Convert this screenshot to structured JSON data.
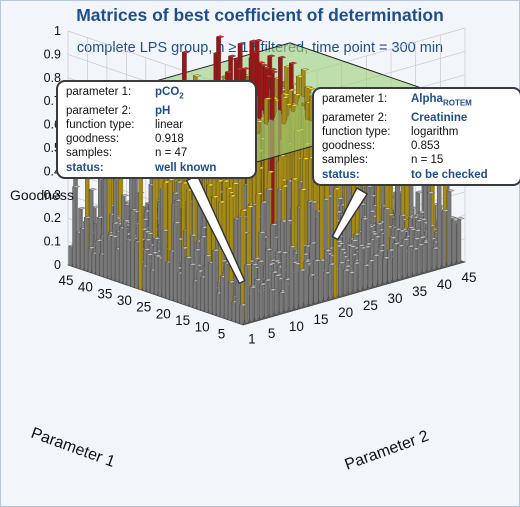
{
  "header": {
    "title": "Matrices of best coefficient of determination",
    "subtitle": "complete LPS group, n ≥ 12 filtered, time point = 300 min"
  },
  "callouts": [
    {
      "rows": [
        {
          "key": "parameter 1:",
          "value": "pCO",
          "sub": "2",
          "strong": true
        },
        {
          "key": "parameter 2:",
          "value": "pH",
          "strong": true
        },
        {
          "key": "function type:",
          "value": "linear"
        },
        {
          "key": "goodness:",
          "value": "0.918"
        },
        {
          "key": "samples:",
          "value": "n = 47"
        },
        {
          "key": "status:",
          "value": "well known",
          "status": true
        }
      ]
    },
    {
      "rows": [
        {
          "key": "parameter 1:",
          "value": "Alpha",
          "sub": "ROTEM",
          "strong": true
        },
        {
          "key": "parameter 2:",
          "value": "Creatinine",
          "strong": true
        },
        {
          "key": "function type:",
          "value": "logarithm"
        },
        {
          "key": "goodness:",
          "value": "0.853"
        },
        {
          "key": "samples:",
          "value": "n = 15"
        },
        {
          "key": "status:",
          "value": "to be checked",
          "status": true
        }
      ]
    }
  ],
  "colors": {
    "gray_bar": "#a8a8a8",
    "yellow_bar": "#e8c21a",
    "red_bar": "#d42020",
    "plane": "#9ed07a",
    "title": "#1f4e8c"
  },
  "chart_data": {
    "type": "bar3d",
    "zlabel": "Goodness",
    "xlabel": "Parameter 1",
    "ylabel": "Parameter 2",
    "z_ticks": [
      "0",
      "0.1",
      "0.2",
      "0.3",
      "0.4",
      "0.5",
      "0.6",
      "0.7",
      "0.8",
      "0.9",
      "1"
    ],
    "x_ticks": [
      "5",
      "10",
      "15",
      "20",
      "25",
      "30",
      "35",
      "40",
      "45"
    ],
    "y_ticks": [
      "1",
      "5",
      "10",
      "15",
      "20",
      "25",
      "30",
      "35",
      "40",
      "45"
    ],
    "zlim": [
      0,
      1
    ],
    "grid_size": 45,
    "threshold_plane": 0.68,
    "highlighted_points": [
      {
        "parameter_1": "pCO2",
        "parameter_2": "pH",
        "goodness": 0.918,
        "samples": 47
      },
      {
        "parameter_1": "AlphaROTEM",
        "parameter_2": "Creatinine",
        "goodness": 0.853,
        "samples": 15
      }
    ]
  }
}
